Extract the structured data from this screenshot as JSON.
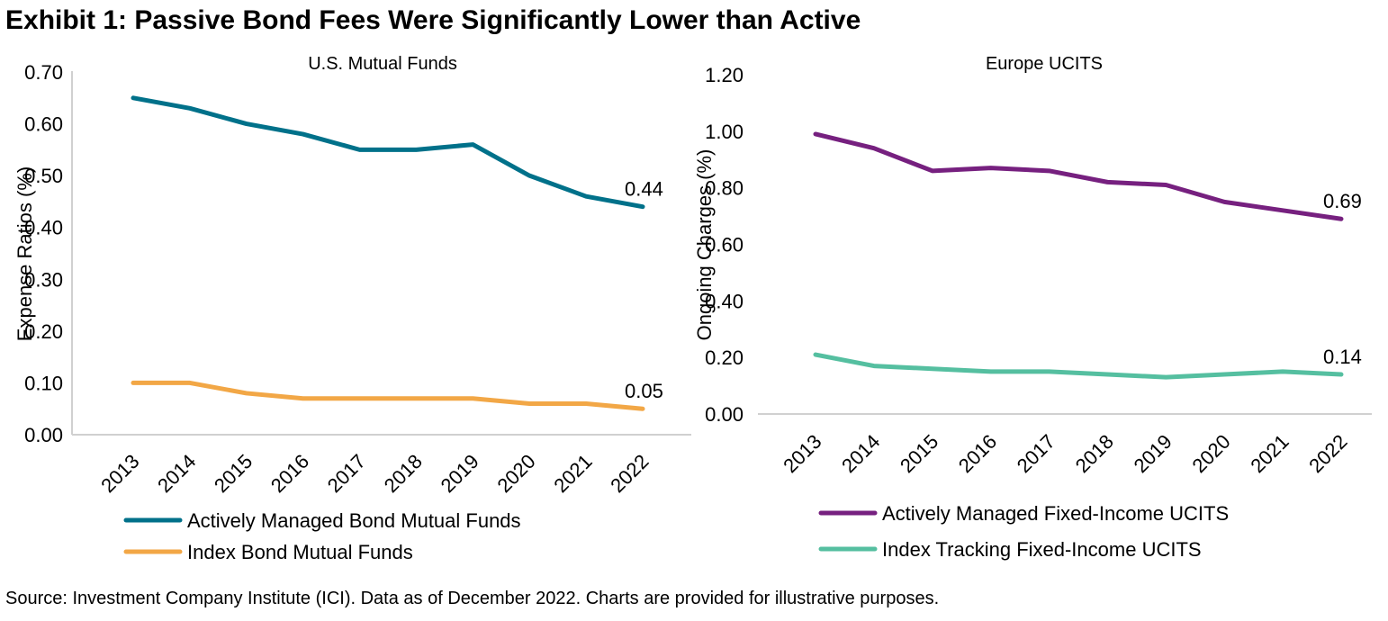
{
  "title": "Exhibit 1: Passive Bond Fees Were Significantly Lower than Active",
  "source": "Source: Investment Company Institute (ICI). Data as of December 2022. Charts are provided for illustrative purposes.",
  "chart_data": [
    {
      "type": "line",
      "title": "U.S. Mutual Funds",
      "ylabel": "Expense Ratios (%)",
      "xlabel": "",
      "ylim": [
        0,
        0.7
      ],
      "yticks": [
        "0.00",
        "0.10",
        "0.20",
        "0.30",
        "0.40",
        "0.50",
        "0.60",
        "0.70"
      ],
      "categories": [
        "2013",
        "2014",
        "2015",
        "2016",
        "2017",
        "2018",
        "2019",
        "2020",
        "2021",
        "2022"
      ],
      "grid": false,
      "legend": "bottom",
      "series": [
        {
          "name": "Actively Managed Bond Mutual Funds",
          "color": "#00718A",
          "values": [
            0.65,
            0.63,
            0.6,
            0.58,
            0.55,
            0.55,
            0.56,
            0.5,
            0.46,
            0.44
          ],
          "end_label": "0.44"
        },
        {
          "name": "Index Bond Mutual Funds",
          "color": "#F2A746",
          "values": [
            0.1,
            0.1,
            0.08,
            0.07,
            0.07,
            0.07,
            0.07,
            0.06,
            0.06,
            0.05
          ],
          "end_label": "0.05"
        }
      ]
    },
    {
      "type": "line",
      "title": "Europe UCITS",
      "ylabel": "Ongoing Charges (%)",
      "xlabel": "",
      "ylim": [
        0,
        1.2
      ],
      "yticks": [
        "0.00",
        "0.20",
        "0.40",
        "0.60",
        "0.80",
        "1.00",
        "1.20"
      ],
      "categories": [
        "2013",
        "2014",
        "2015",
        "2016",
        "2017",
        "2018",
        "2019",
        "2020",
        "2021",
        "2022"
      ],
      "grid": false,
      "legend": "bottom",
      "series": [
        {
          "name": "Actively Managed Fixed-Income UCITS",
          "color": "#76207F",
          "values": [
            0.99,
            0.94,
            0.86,
            0.87,
            0.86,
            0.82,
            0.81,
            0.75,
            0.72,
            0.69
          ],
          "end_label": "0.69"
        },
        {
          "name": "Index Tracking Fixed-Income UCITS",
          "color": "#55BFA0",
          "values": [
            0.21,
            0.17,
            0.16,
            0.15,
            0.15,
            0.14,
            0.13,
            0.14,
            0.15,
            0.14
          ],
          "end_label": "0.14"
        }
      ]
    }
  ]
}
